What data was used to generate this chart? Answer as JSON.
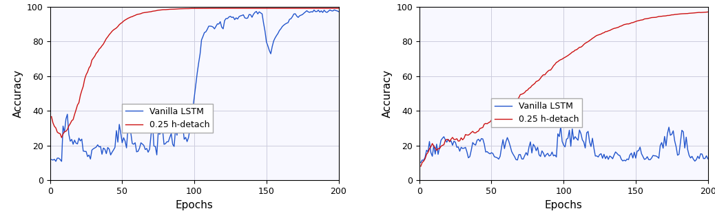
{
  "xlabel": "Epochs",
  "ylabel": "Accuracy",
  "xlim": [
    0,
    200
  ],
  "ylim": [
    0,
    100
  ],
  "xticks": [
    0,
    50,
    100,
    150,
    200
  ],
  "yticks": [
    0,
    20,
    40,
    60,
    80,
    100
  ],
  "legend_labels": [
    "Vanilla LSTM",
    "0.25 h-detach"
  ],
  "blue_color": "#2255cc",
  "red_color": "#cc1111",
  "linewidth": 1.0,
  "figsize": [
    10.38,
    3.2
  ],
  "dpi": 100,
  "bg_color": "#f8f8ff",
  "grid_color": "#ccccdd"
}
